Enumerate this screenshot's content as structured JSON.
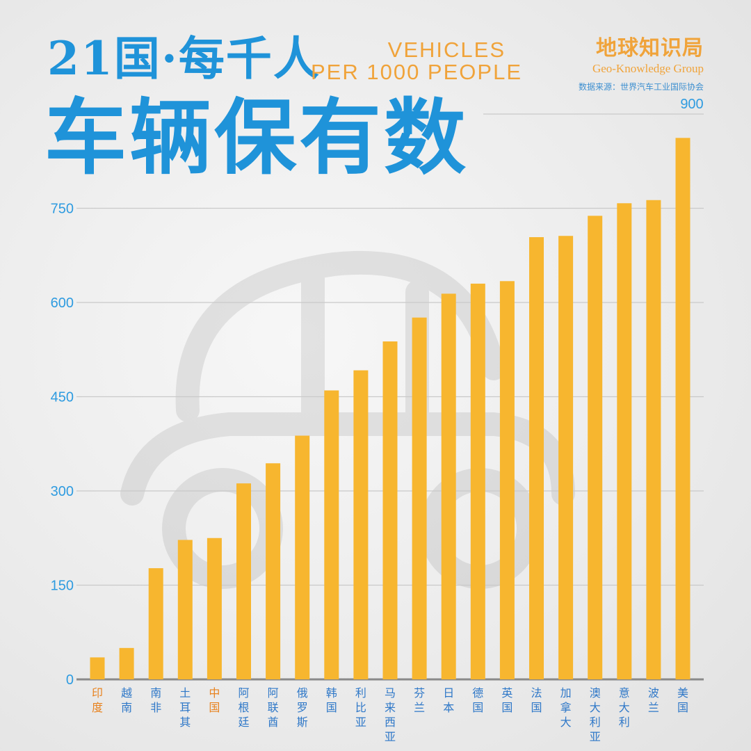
{
  "header": {
    "title_line1": "21国·每千人",
    "title_en_line1": "VEHICLES",
    "title_en_line2": "PER 1000 PEOPLE",
    "title_line2": "车辆保有数"
  },
  "brand": {
    "name_cn": "地球知识局",
    "name_en": "Geo-Knowledge Group",
    "source": "数据来源：世界汽车工业国际协会"
  },
  "colors": {
    "bar": "#f7b62f",
    "title": "#1f93d9",
    "axis_text": "#2e9be0",
    "label_normal": "#2f78c8",
    "label_highlight": "#e8821e"
  },
  "chart_data": {
    "type": "bar",
    "title": "",
    "xlabel": "",
    "ylabel": "",
    "ylim": [
      0,
      900
    ],
    "yticks": [
      0,
      150,
      300,
      450,
      600,
      750,
      900
    ],
    "grid": true,
    "categories": [
      "印度",
      "越南",
      "南非",
      "土耳其",
      "中国",
      "阿根廷",
      "阿联酋",
      "俄罗斯",
      "韩国",
      "利比亚",
      "马来西亚",
      "芬兰",
      "日本",
      "德国",
      "英国",
      "法国",
      "加拿大",
      "澳大利亚",
      "意大利",
      "波兰",
      "美国"
    ],
    "highlight": [
      "印度",
      "中国"
    ],
    "values": [
      35,
      50,
      177,
      222,
      225,
      312,
      344,
      388,
      460,
      492,
      538,
      576,
      614,
      630,
      634,
      704,
      706,
      738,
      758,
      763,
      862
    ]
  }
}
